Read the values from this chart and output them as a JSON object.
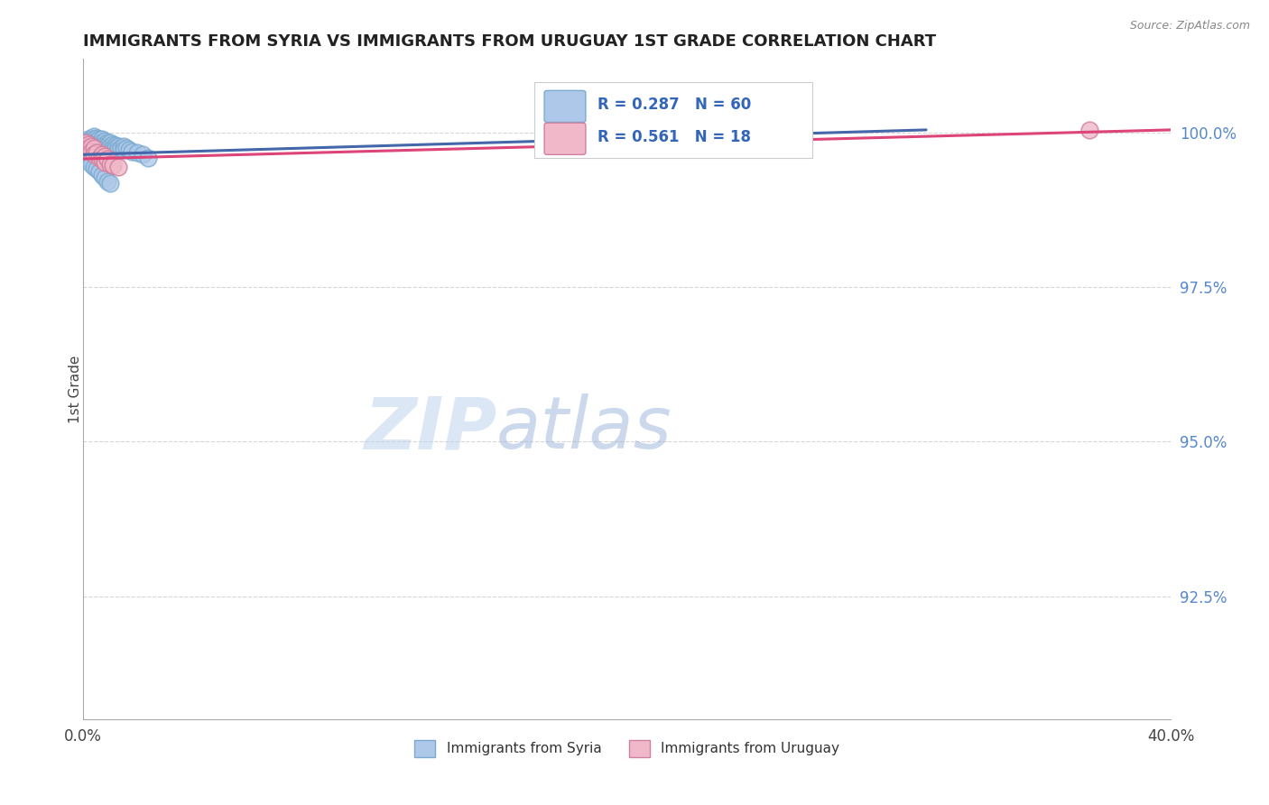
{
  "title": "IMMIGRANTS FROM SYRIA VS IMMIGRANTS FROM URUGUAY 1ST GRADE CORRELATION CHART",
  "source_text": "Source: ZipAtlas.com",
  "ylabel": "1st Grade",
  "ytick_labels": [
    "100.0%",
    "97.5%",
    "95.0%",
    "92.5%"
  ],
  "ytick_values": [
    1.0,
    0.975,
    0.95,
    0.925
  ],
  "xlim": [
    0.0,
    0.4
  ],
  "ylim": [
    0.905,
    1.012
  ],
  "legend_r_syria": "0.287",
  "legend_n_syria": "60",
  "legend_r_uruguay": "0.561",
  "legend_n_uruguay": "18",
  "syria_color": "#adc8e8",
  "syria_edge": "#7aaad0",
  "uruguay_color": "#f0b8c8",
  "uruguay_edge": "#d080a0",
  "syria_line_color": "#4466aa",
  "uruguay_line_color": "#dd4477",
  "grid_color": "#cccccc",
  "grid_color_dashed": "#bbbbbb",
  "watermark_zip_color": "#c5d8f0",
  "watermark_atlas_color": "#8899bb",
  "syria_x": [
    0.001,
    0.001,
    0.002,
    0.002,
    0.002,
    0.003,
    0.003,
    0.003,
    0.004,
    0.004,
    0.004,
    0.004,
    0.004,
    0.005,
    0.005,
    0.005,
    0.005,
    0.006,
    0.006,
    0.006,
    0.006,
    0.007,
    0.007,
    0.007,
    0.007,
    0.008,
    0.008,
    0.008,
    0.009,
    0.009,
    0.009,
    0.01,
    0.01,
    0.011,
    0.011,
    0.012,
    0.012,
    0.013,
    0.013,
    0.014,
    0.015,
    0.015,
    0.016,
    0.017,
    0.018,
    0.02,
    0.022,
    0.024,
    0.001,
    0.001,
    0.002,
    0.003,
    0.003,
    0.004,
    0.005,
    0.006,
    0.007,
    0.008,
    0.009,
    0.01
  ],
  "syria_y": [
    0.9975,
    0.998,
    0.999,
    0.9985,
    0.9988,
    0.9992,
    0.9988,
    0.9982,
    0.9995,
    0.999,
    0.9985,
    0.998,
    0.9975,
    0.9992,
    0.9988,
    0.9983,
    0.9978,
    0.999,
    0.9985,
    0.998,
    0.9975,
    0.999,
    0.9985,
    0.9978,
    0.9972,
    0.9988,
    0.9982,
    0.9975,
    0.9985,
    0.998,
    0.9972,
    0.9985,
    0.9978,
    0.9982,
    0.9975,
    0.998,
    0.9975,
    0.9978,
    0.9972,
    0.9975,
    0.9978,
    0.9972,
    0.9975,
    0.9972,
    0.997,
    0.9968,
    0.9965,
    0.996,
    0.9968,
    0.9962,
    0.9958,
    0.9955,
    0.995,
    0.9945,
    0.9942,
    0.9938,
    0.9932,
    0.9928,
    0.9922,
    0.9918
  ],
  "uruguay_x": [
    0.001,
    0.002,
    0.002,
    0.003,
    0.003,
    0.004,
    0.004,
    0.005,
    0.006,
    0.007,
    0.007,
    0.008,
    0.008,
    0.009,
    0.01,
    0.011,
    0.013,
    0.37
  ],
  "uruguay_y": [
    0.9985,
    0.9982,
    0.9975,
    0.9978,
    0.997,
    0.9975,
    0.9965,
    0.9968,
    0.996,
    0.9965,
    0.9958,
    0.9962,
    0.9952,
    0.9958,
    0.995,
    0.9948,
    0.9945,
    1.0005
  ],
  "syria_trendline_x": [
    0.0,
    0.31
  ],
  "syria_trendline_y": [
    0.9965,
    1.0005
  ],
  "uruguay_trendline_x": [
    0.0,
    0.4
  ],
  "uruguay_trendline_y": [
    0.9958,
    1.0005
  ]
}
